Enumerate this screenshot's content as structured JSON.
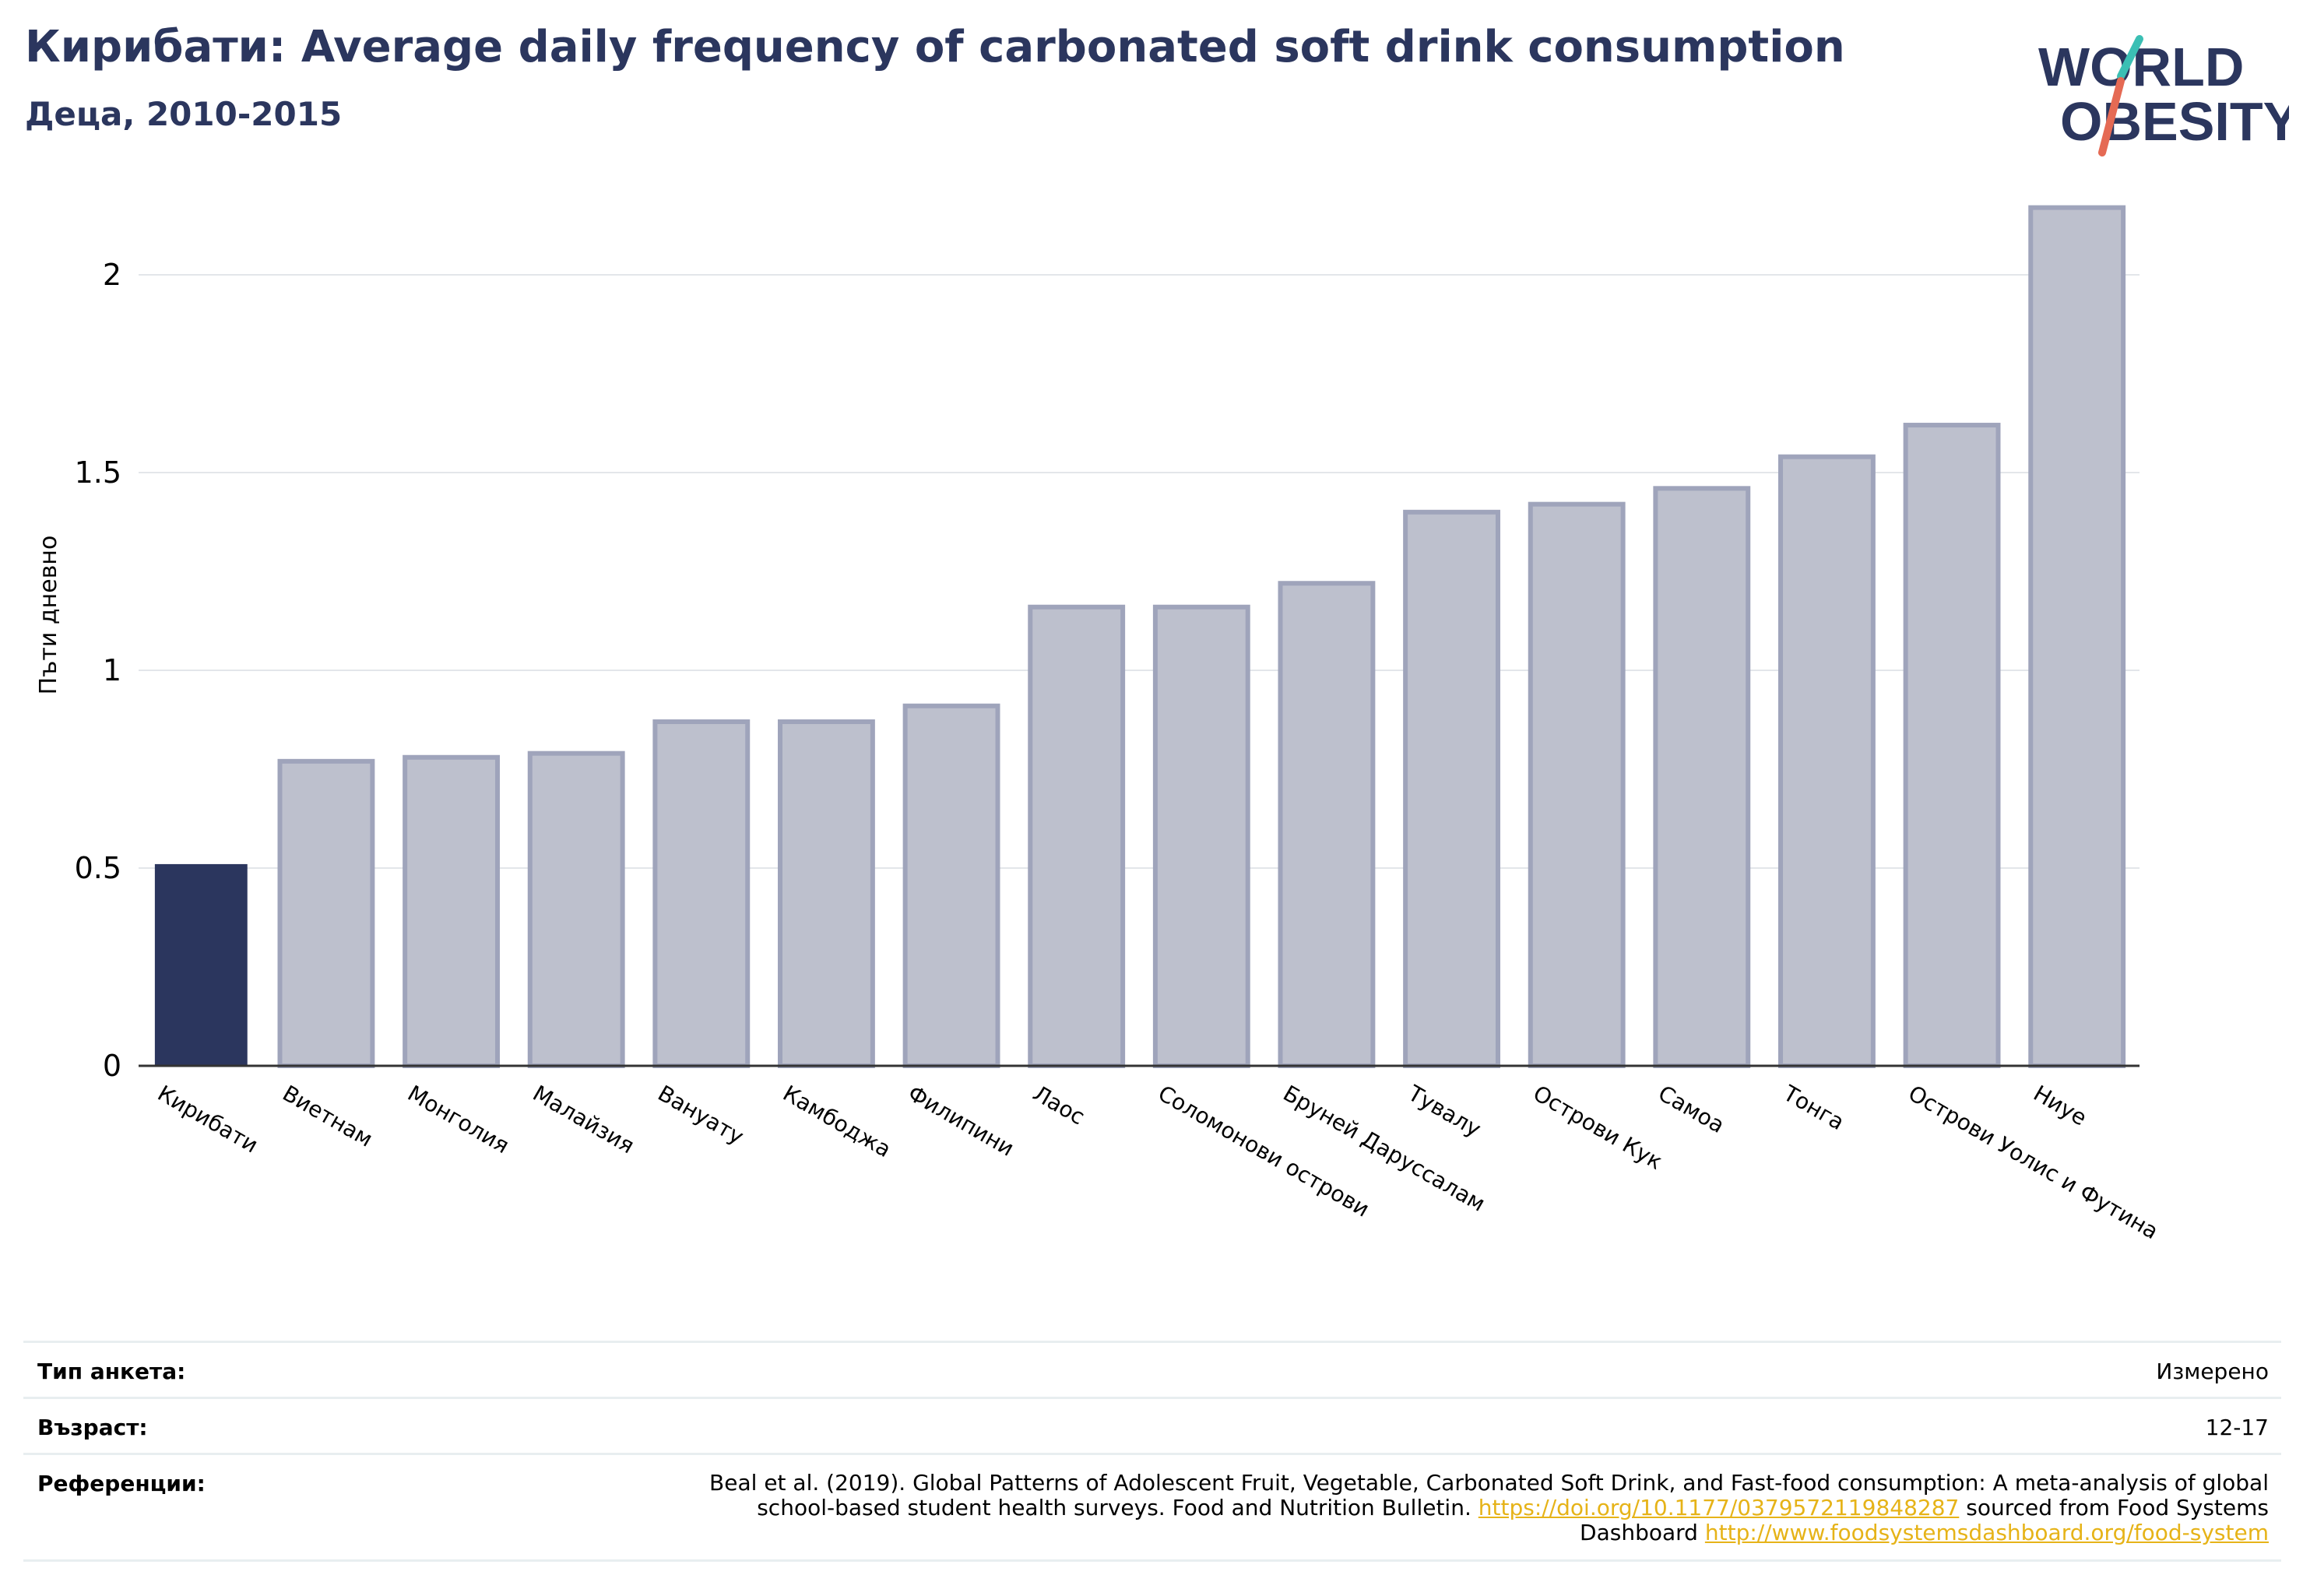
{
  "header": {
    "title": "Кирибати: Average daily frequency of carbonated soft drink consumption",
    "subtitle": "Деца, 2010-2015"
  },
  "logo": {
    "line1": "WORLD",
    "line2": "OBESITY"
  },
  "colors": {
    "highlight": "#2b365e",
    "bar": "#bdc0cd",
    "bar_edge": "#9fa4bb",
    "title": "#2b365e",
    "link": "#e6b318"
  },
  "chart_data": {
    "type": "bar",
    "ylabel": "Пъти дневно",
    "ylim": [
      0,
      2.2
    ],
    "yticks": [
      0,
      0.5,
      1,
      1.5,
      2
    ],
    "ytick_labels": [
      "0",
      "0.5",
      "1",
      "1.5",
      "2"
    ],
    "grid": true,
    "categories": [
      "Кирибати",
      "Виетнам",
      "Монголия",
      "Малайзия",
      "Вануату",
      "Камбоджа",
      "Филипини",
      "Лаос",
      "Соломонови острови",
      "Бруней Даруссалам",
      "Тувалу",
      "Острови Кук",
      "Самоа",
      "Тонга",
      "Острови Уолис и Футина",
      "Ниуе"
    ],
    "values": [
      0.51,
      0.77,
      0.78,
      0.79,
      0.87,
      0.87,
      0.91,
      1.16,
      1.16,
      1.22,
      1.4,
      1.42,
      1.46,
      1.54,
      1.62,
      2.17
    ],
    "highlight": "Кирибати"
  },
  "meta": {
    "survey_label": "Тип анкета:",
    "survey_value": "Измерено",
    "age_label": "Възраст:",
    "age_value": "12-17",
    "ref_label": "Референции:",
    "ref_text1": "Beal et al. (2019). Global Patterns of Adolescent Fruit, Vegetable, Carbonated Soft Drink, and Fast-food consumption: A meta-analysis of global school-based student health surveys. Food and Nutrition Bulletin.",
    "ref_link1": "https://doi.org/10.1177/0379572119848287",
    "ref_text2": "sourced from Food Systems Dashboard",
    "ref_link2": "http://www.foodsystemsdashboard.org/food-system"
  }
}
